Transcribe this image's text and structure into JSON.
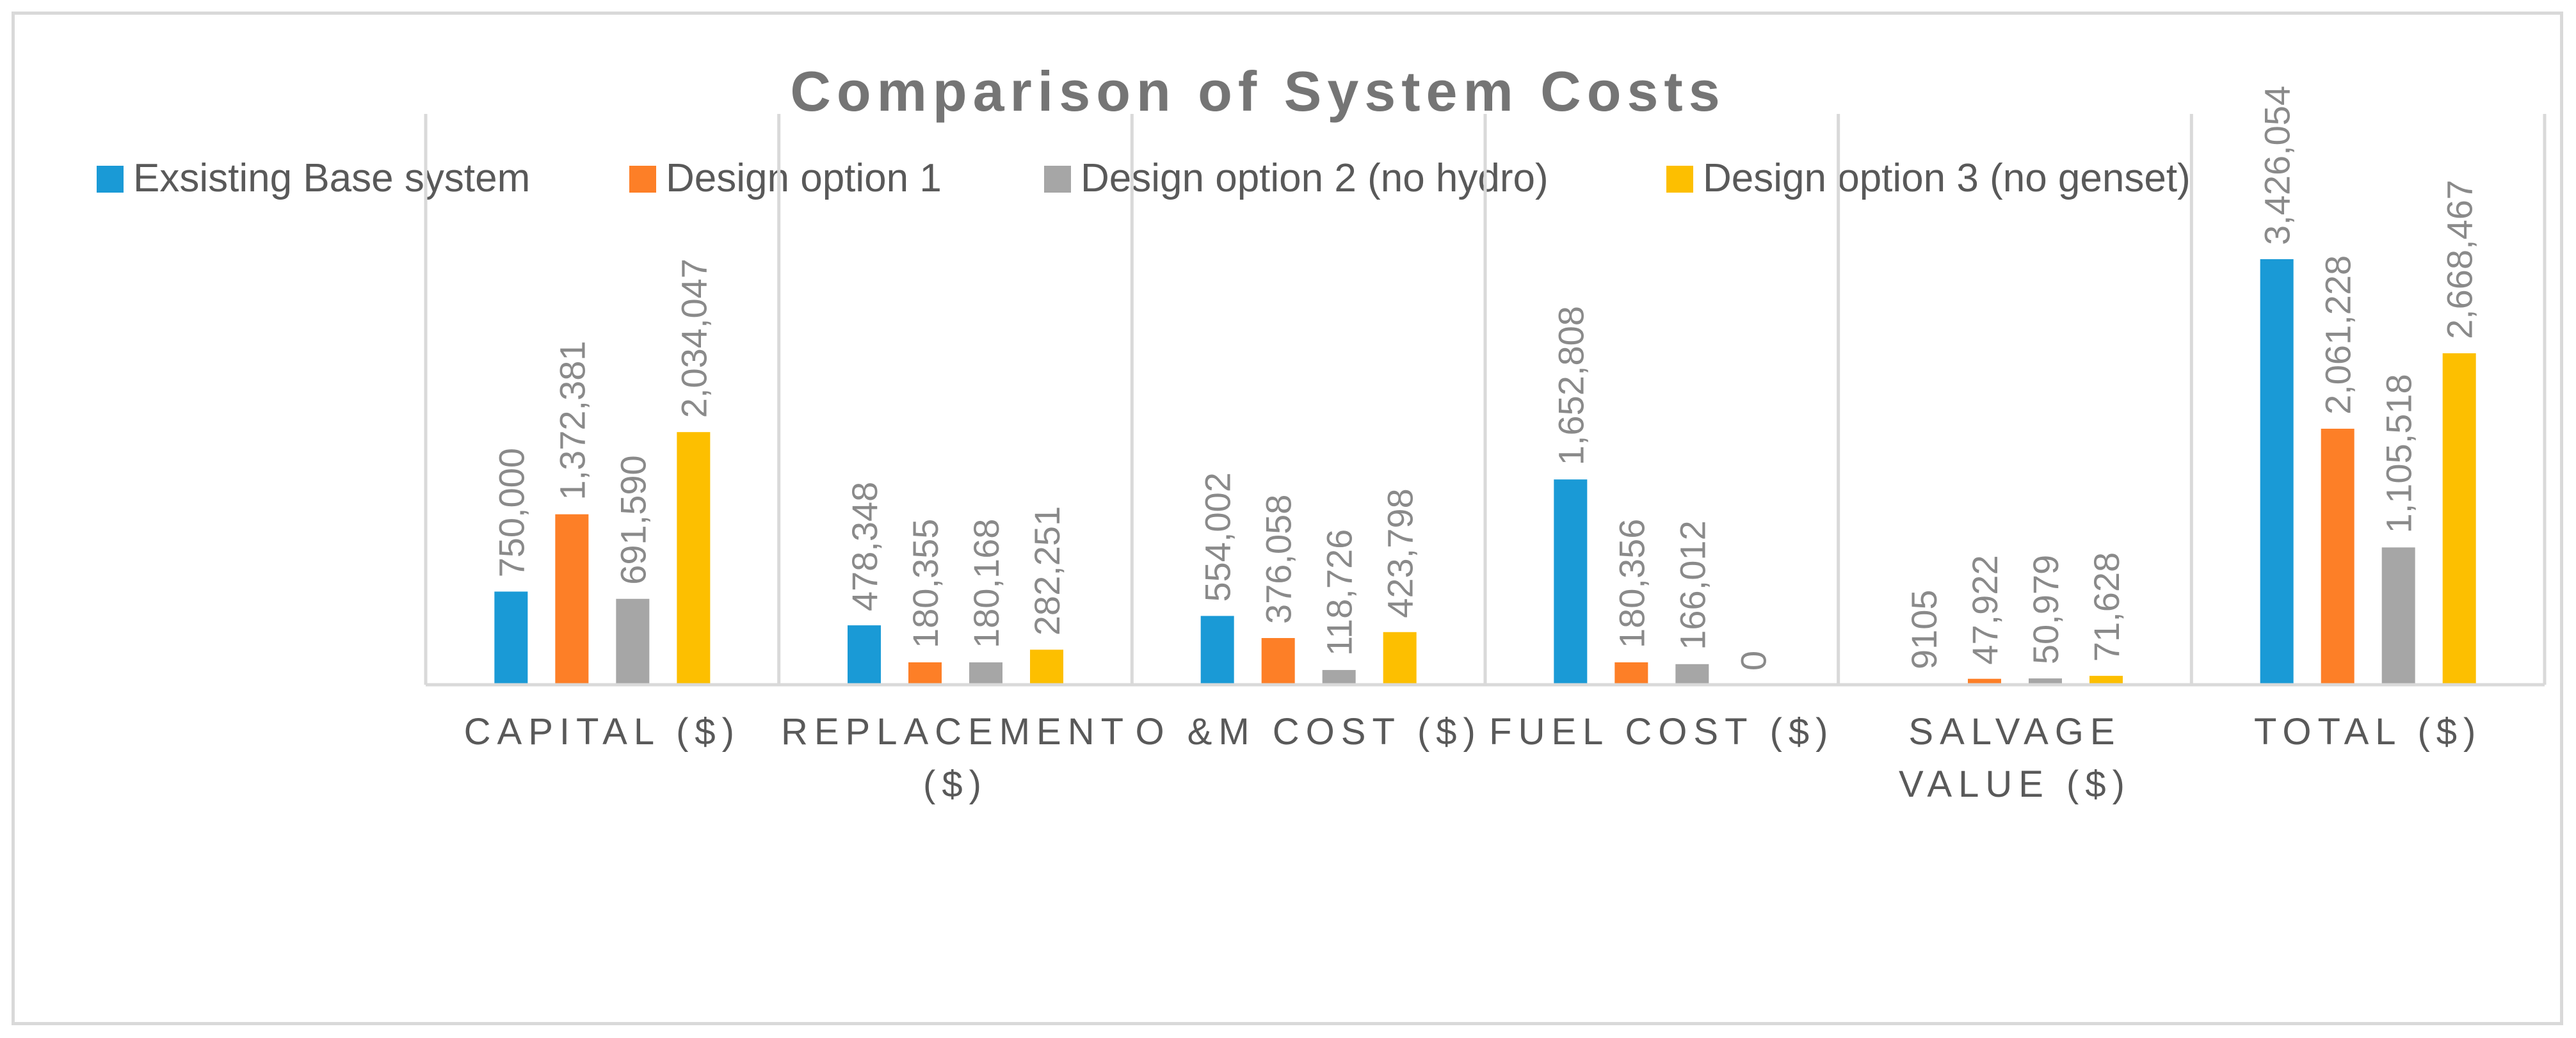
{
  "chart_data": {
    "type": "bar",
    "title": "Comparison of System Costs",
    "categories": [
      [
        "CAPITAL ($)"
      ],
      [
        "REPLACEMENT",
        "($)"
      ],
      [
        "O &M COST ($)"
      ],
      [
        "FUEL COST ($)"
      ],
      [
        "SALVAGE",
        "VALUE ($)"
      ],
      [
        "TOTAL ($)"
      ]
    ],
    "series": [
      {
        "name": "Exsisting Base system",
        "color": "#1a9ad6",
        "values": [
          750000,
          478348,
          554002,
          1652808,
          9105,
          3426054
        ],
        "labels": [
          "750,000",
          "478,348",
          "554,002",
          "1,652,808",
          "9105",
          "3,426,054"
        ]
      },
      {
        "name": "Design option 1",
        "color": "#fd7f27",
        "values": [
          1372381,
          180355,
          376058,
          180356,
          47922,
          2061228
        ],
        "labels": [
          "1,372,381",
          "180,355",
          "376,058",
          "180,356",
          "47,922",
          "2,061,228"
        ]
      },
      {
        "name": "Design option 2 (no hydro)",
        "color": "#a6a6a6",
        "values": [
          691590,
          180168,
          118726,
          166012,
          50979,
          1105518
        ],
        "labels": [
          "691,590",
          "180,168",
          "118,726",
          "166,012",
          "50,979",
          "1,105,518"
        ]
      },
      {
        "name": "Design option 3 (no genset)",
        "color": "#fdbf00",
        "values": [
          2034047,
          282251,
          423798,
          0,
          71628,
          2668467
        ],
        "labels": [
          "2,034,047",
          "282,251",
          "423,798",
          "0",
          "71,628",
          "2,668,467"
        ]
      }
    ],
    "xlabel": "",
    "ylabel": "",
    "ylim": [
      0,
      3426054
    ],
    "legend": "top",
    "grid": "vertical category separators"
  }
}
